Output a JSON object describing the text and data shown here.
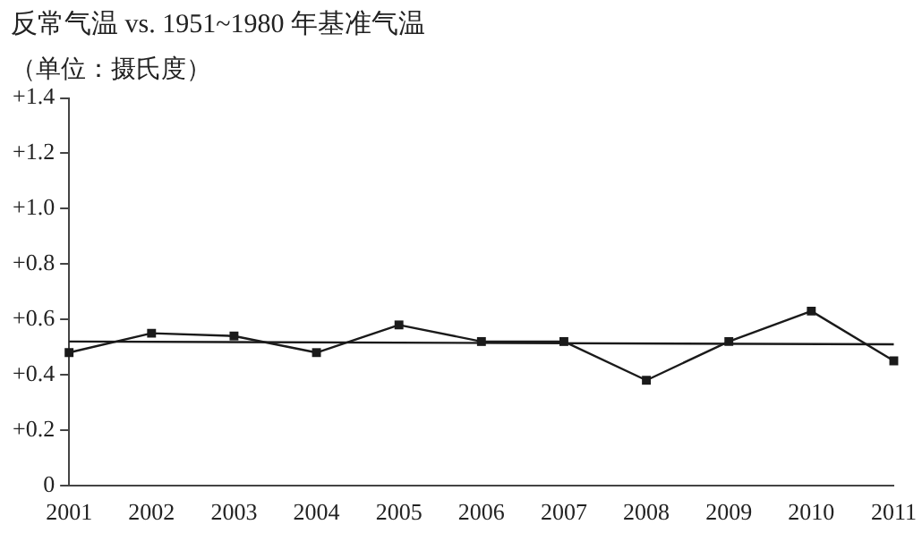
{
  "chart_data": {
    "type": "line",
    "title": "反常气温 vs. 1951~1980 年基准气温",
    "subtitle": "（单位：摄氏度）",
    "categories": [
      "2001",
      "2002",
      "2003",
      "2004",
      "2005",
      "2006",
      "2007",
      "2008",
      "2009",
      "2010",
      "2011"
    ],
    "series": [
      {
        "color": "#1a1a1a",
        "marker": "square",
        "values": [
          0.48,
          0.55,
          0.54,
          0.48,
          0.58,
          0.52,
          0.52,
          0.38,
          0.52,
          0.63,
          0.45
        ]
      },
      {
        "type": "line",
        "color": "#1a1a1a",
        "marker": "none",
        "values": [
          0.52,
          null,
          null,
          null,
          null,
          null,
          null,
          null,
          null,
          null,
          0.51
        ]
      }
    ],
    "ylim": [
      0,
      1.4
    ],
    "yticks": [
      0,
      {
        "value": 0.2,
        "label": "+0.2"
      },
      {
        "value": 0.4,
        "label": "+0.4"
      },
      {
        "value": 0.6,
        "label": "+0.6"
      },
      {
        "value": 0.8,
        "label": "+0.8"
      },
      {
        "value": 1.0,
        "label": "+1.0"
      },
      {
        "value": 1.2,
        "label": "+1.2"
      },
      {
        "value": 1.4,
        "label": "+1.4"
      }
    ],
    "grid": false,
    "legend": false
  }
}
